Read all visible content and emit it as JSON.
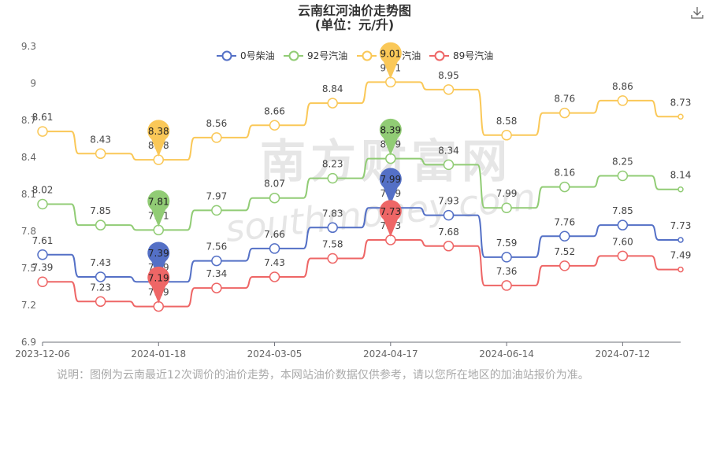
{
  "title": "云南红河油价走势图",
  "subtitle": "(单位：元/升)",
  "download_icon": "download-icon",
  "footnote": "说明：图例为云南最近12次调价的油价走势，本网站油价数据仅供参考，请以您所在地区的加油站报价为准。",
  "watermark": {
    "cn": "南方财富网",
    "en": "southmoney.com"
  },
  "chart_data": {
    "type": "line",
    "x_tick_labels": [
      "2023-12-06",
      "2024-01-18",
      "2024-03-05",
      "2024-04-17",
      "2024-06-14",
      "2024-07-12"
    ],
    "ylim": [
      6.9,
      9.3
    ],
    "y_ticks": [
      "6.9",
      "7.2",
      "7.5",
      "7.8",
      "8.1",
      "8.4",
      "8.7",
      "9",
      "9.3"
    ],
    "grid": false,
    "legend_position": "top",
    "series": [
      {
        "name": "0号柴油",
        "color": "#5470c6",
        "values": [
          7.61,
          7.43,
          7.39,
          7.56,
          7.66,
          7.83,
          7.99,
          7.93,
          7.59,
          7.76,
          7.85,
          7.73
        ],
        "max_index": 6,
        "min_index": 2
      },
      {
        "name": "92号汽油",
        "color": "#91cc75",
        "values": [
          8.02,
          7.85,
          7.81,
          7.97,
          8.07,
          8.23,
          8.39,
          8.34,
          7.99,
          8.16,
          8.25,
          8.14
        ],
        "max_index": 6,
        "min_index": 2
      },
      {
        "name": "95号汽油",
        "color": "#fac858",
        "values": [
          8.61,
          8.43,
          8.38,
          8.56,
          8.66,
          8.84,
          9.01,
          8.95,
          8.58,
          8.76,
          8.86,
          8.73
        ],
        "max_index": 6,
        "min_index": 2
      },
      {
        "name": "89号汽油",
        "color": "#ee6666",
        "values": [
          7.39,
          7.23,
          7.19,
          7.34,
          7.43,
          7.58,
          7.73,
          7.68,
          7.36,
          7.52,
          7.6,
          7.49
        ],
        "max_index": 6,
        "min_index": 2
      }
    ]
  }
}
